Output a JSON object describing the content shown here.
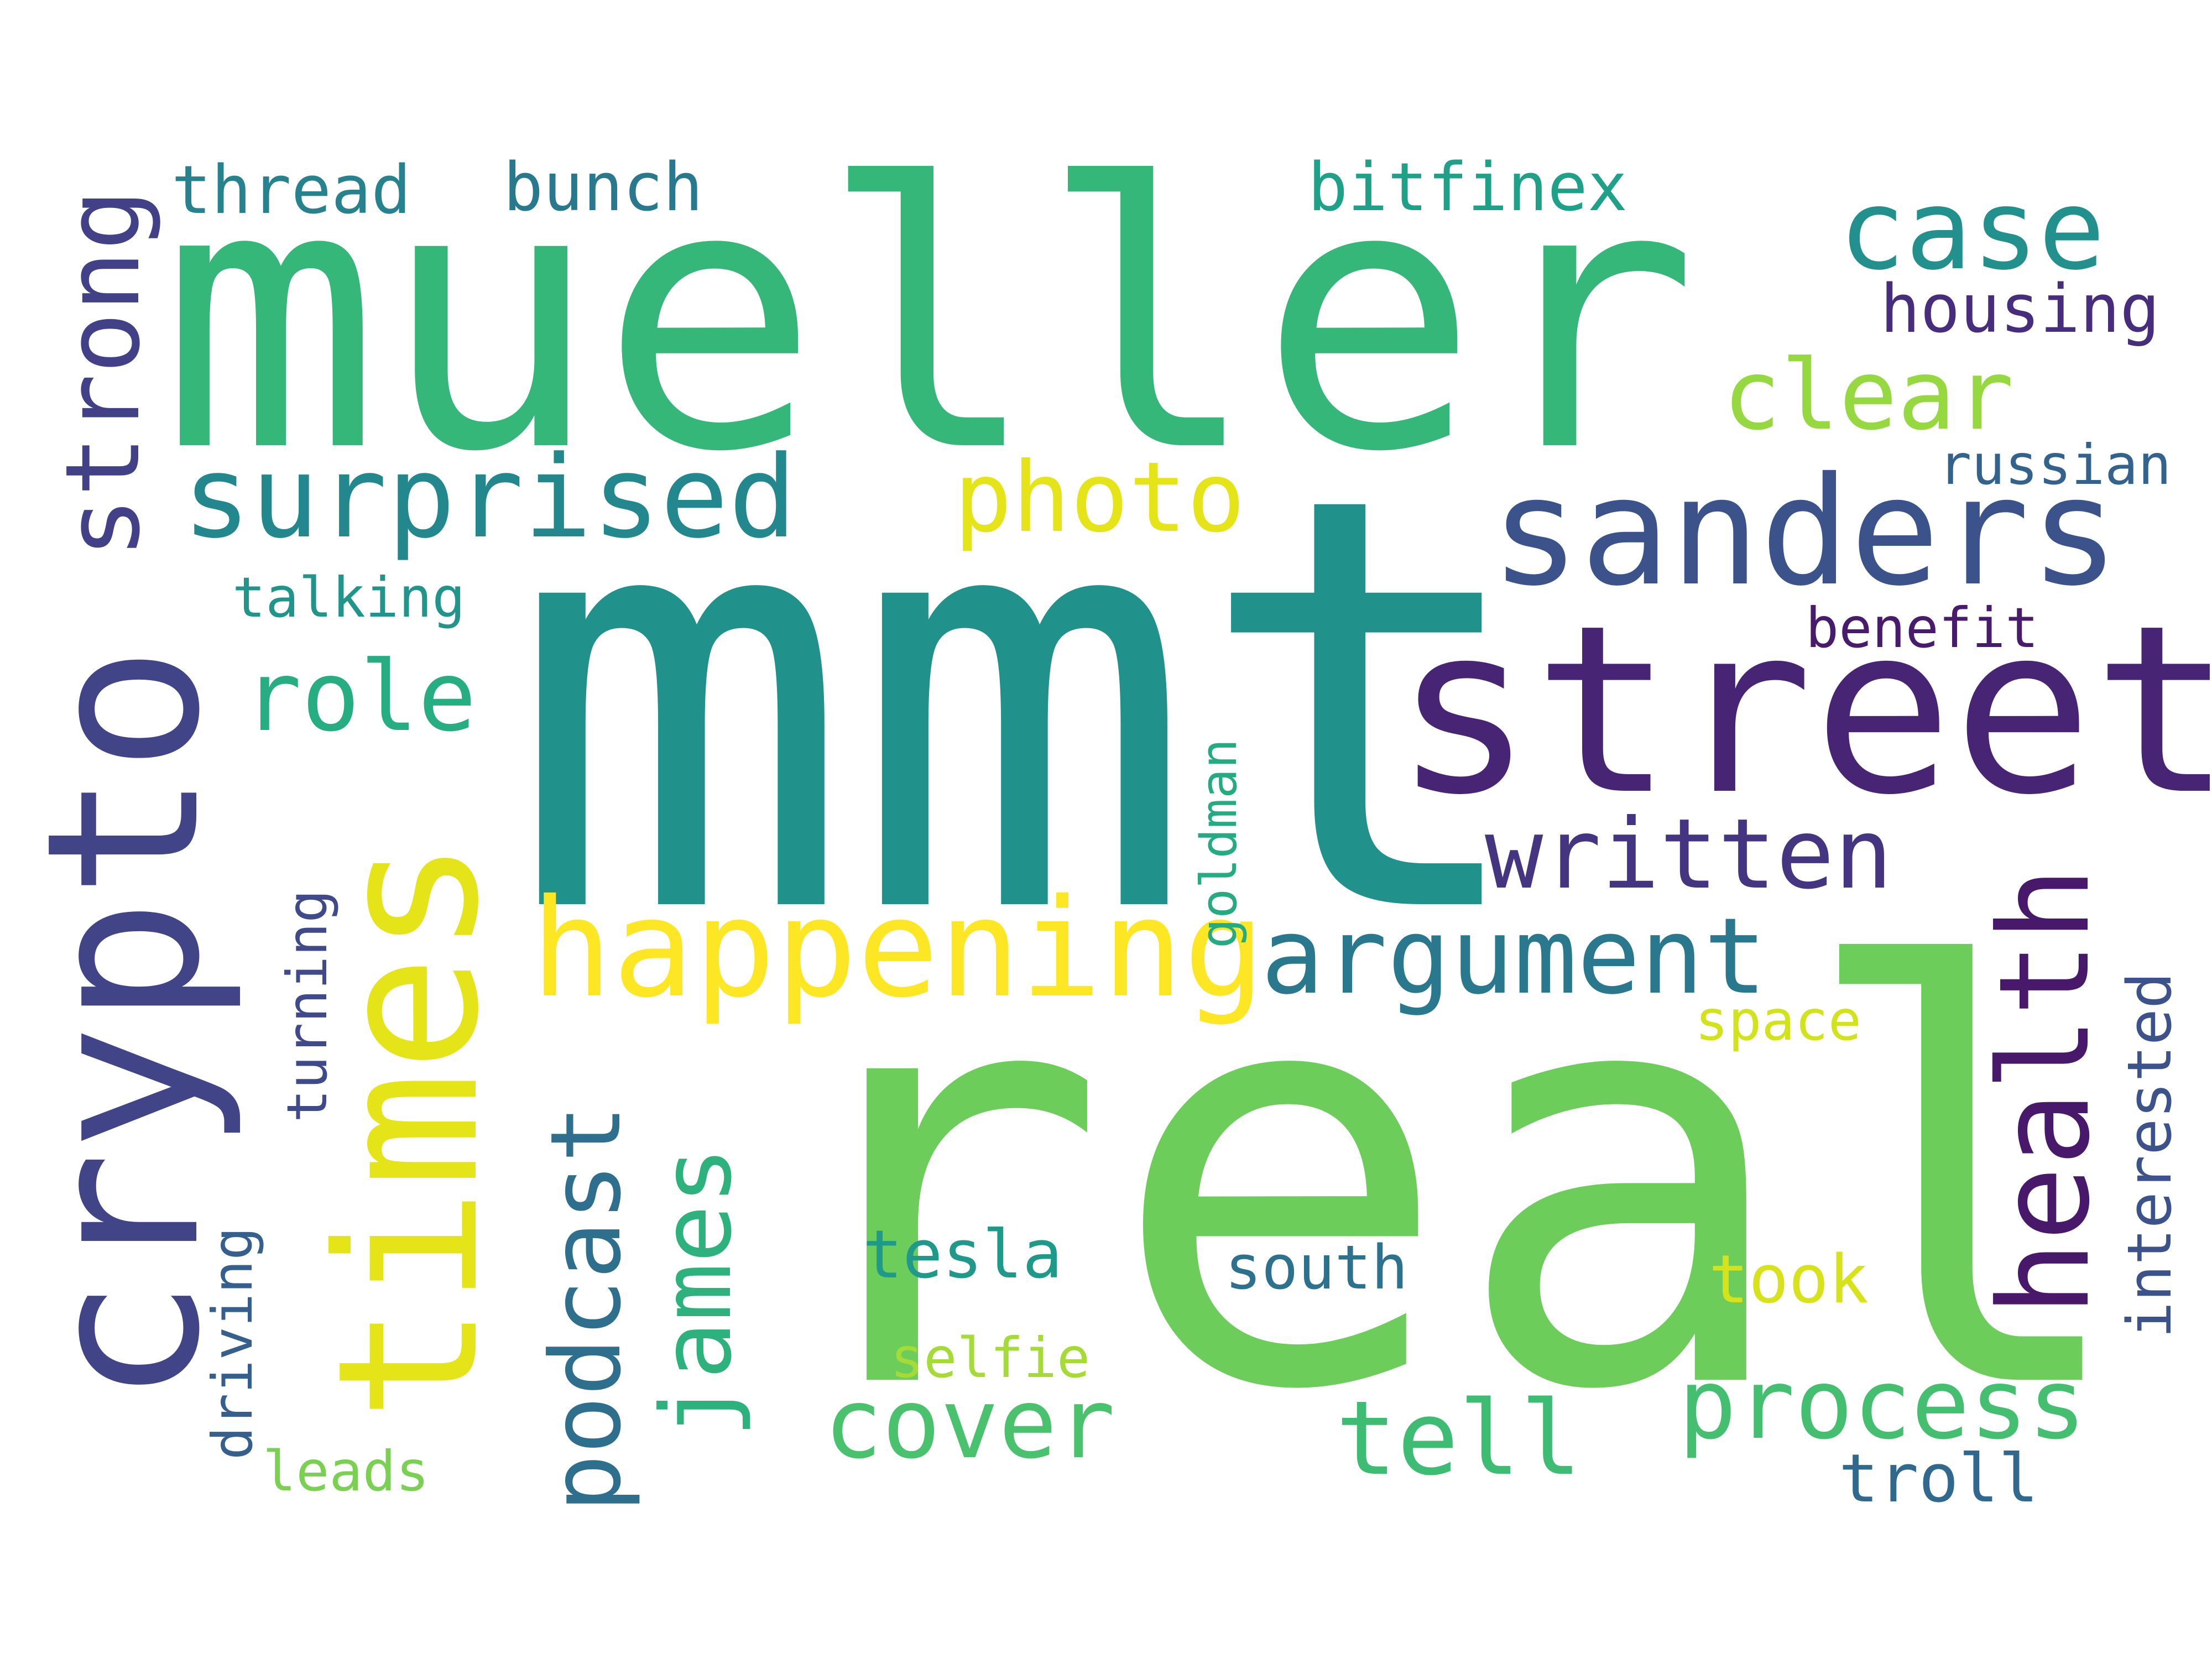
{
  "word_cloud": {
    "words": [
      {
        "text": "mueller",
        "color": "#35b779"
      },
      {
        "text": "mmt",
        "color": "#21918c"
      },
      {
        "text": "real",
        "color": "#6ccd5a"
      },
      {
        "text": "street",
        "color": "#482475"
      },
      {
        "text": "crypto",
        "color": "#414487"
      },
      {
        "text": "times",
        "color": "#e4e419"
      },
      {
        "text": "sanders",
        "color": "#3b528b"
      },
      {
        "text": "happening",
        "color": "#fde725"
      },
      {
        "text": "surprised",
        "color": "#23888e"
      },
      {
        "text": "strong",
        "color": "#424086"
      },
      {
        "text": "case",
        "color": "#22908c"
      },
      {
        "text": "clear",
        "color": "#95d840"
      },
      {
        "text": "photo",
        "color": "#e5e419"
      },
      {
        "text": "argument",
        "color": "#2a788e"
      },
      {
        "text": "written",
        "color": "#453581"
      },
      {
        "text": "health",
        "color": "#48186a"
      },
      {
        "text": "podcast",
        "color": "#2e6f8e"
      },
      {
        "text": "james",
        "color": "#2db27d"
      },
      {
        "text": "role",
        "color": "#26ad81"
      },
      {
        "text": "cover",
        "color": "#4ac16d"
      },
      {
        "text": "tell",
        "color": "#3fbc73"
      },
      {
        "text": "process",
        "color": "#44bf70"
      },
      {
        "text": "thread",
        "color": "#26828e"
      },
      {
        "text": "bunch",
        "color": "#29798e"
      },
      {
        "text": "bitfinex",
        "color": "#1fa088"
      },
      {
        "text": "housing",
        "color": "#472d7b"
      },
      {
        "text": "russian",
        "color": "#33638d"
      },
      {
        "text": "benefit",
        "color": "#481b6d"
      },
      {
        "text": "talking",
        "color": "#1f958b"
      },
      {
        "text": "turning",
        "color": "#3e4a89"
      },
      {
        "text": "driving",
        "color": "#355f8d"
      },
      {
        "text": "goldman",
        "color": "#25ab82"
      },
      {
        "text": "interested",
        "color": "#3b528b"
      },
      {
        "text": "space",
        "color": "#d2e21b"
      },
      {
        "text": "tesla",
        "color": "#1f9a8a"
      },
      {
        "text": "south",
        "color": "#2c718e"
      },
      {
        "text": "took",
        "color": "#d8e219"
      },
      {
        "text": "selfie",
        "color": "#a5db36"
      },
      {
        "text": "leads",
        "color": "#7ad151"
      },
      {
        "text": "troll",
        "color": "#31688e"
      }
    ]
  }
}
